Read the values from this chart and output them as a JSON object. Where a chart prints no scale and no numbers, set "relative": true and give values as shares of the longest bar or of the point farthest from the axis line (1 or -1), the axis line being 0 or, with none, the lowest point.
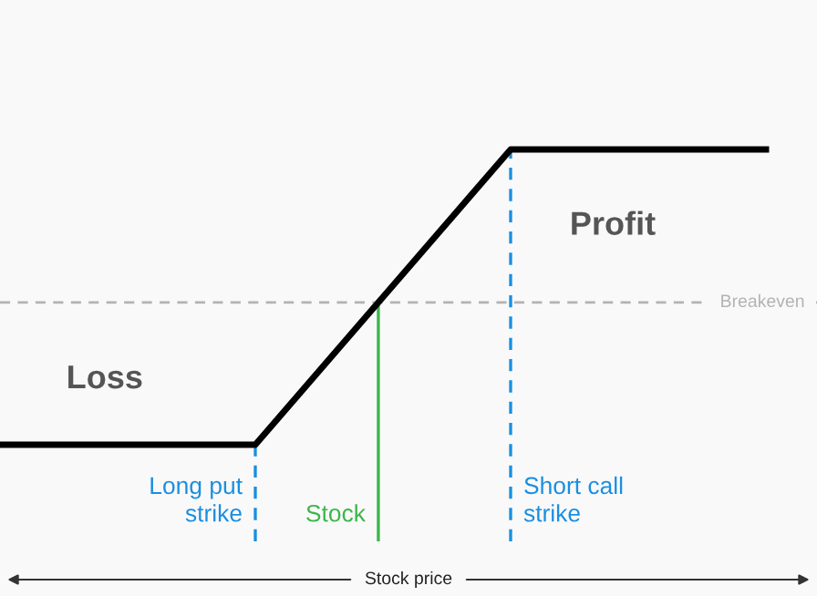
{
  "chart_data": {
    "type": "line",
    "relative": true,
    "categories": [
      null,
      null,
      null,
      null
    ],
    "series": [
      {
        "color": "#000000",
        "values": [
          -0.93,
          -0.93,
          1,
          1
        ]
      }
    ],
    "ref_lines": [
      {
        "axis": "y",
        "value": 0,
        "label": "Breakeven",
        "color": "#b3b3b3",
        "line_style": "dashed"
      }
    ],
    "annotations": [
      "Loss",
      "Profit",
      "Long put\nstrike",
      "Stock",
      "Short call\nstrike",
      "Stock price"
    ],
    "legend": false,
    "marker": "none",
    "line_style": "solid"
  }
}
